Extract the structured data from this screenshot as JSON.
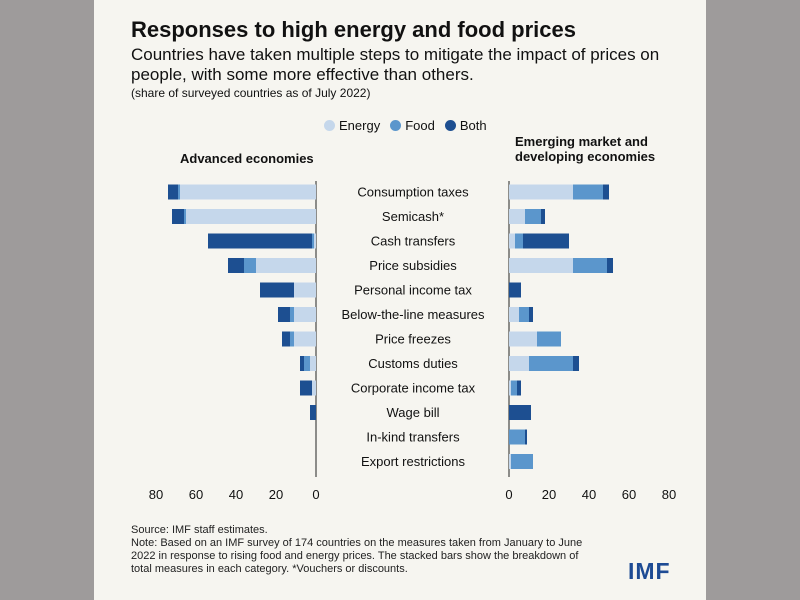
{
  "title": "Responses to high energy and food prices",
  "subtitle": "Countries have taken multiple steps to mitigate the impact of prices on people, with some more effective than others.",
  "note": "(share of surveyed countries as of July 2022)",
  "legend": [
    {
      "name": "Energy",
      "color": "#c5d7eb"
    },
    {
      "name": "Food",
      "color": "#5b96cc"
    },
    {
      "name": "Both",
      "color": "#1d4f91"
    }
  ],
  "panels": {
    "left_title": "Advanced economies",
    "right_title": "Emerging market and developing economies"
  },
  "footer": {
    "source": "Source: IMF staff estimates.",
    "note": "Note: Based on an IMF survey of 174 countries on the measures taken from January to June 2022 in response to rising food and energy prices. The stacked bars show the breakdown of total measures in each category. *Vouchers or discounts."
  },
  "logo": "IMF",
  "chart_data": {
    "type": "bar",
    "orientation": "horizontal",
    "stacked": true,
    "categories": [
      "Consumption taxes",
      "Semicash*",
      "Cash transfers",
      "Price subsidies",
      "Personal income tax",
      "Below-the-line measures",
      "Price freezes",
      "Customs duties",
      "Corporate income tax",
      "Wage bill",
      "In-kind transfers",
      "Export restrictions"
    ],
    "axis_ticks_left": [
      "80",
      "60",
      "40",
      "20",
      "0"
    ],
    "axis_ticks_right": [
      "0",
      "20",
      "40",
      "60",
      "80"
    ],
    "xlim": [
      0,
      80
    ],
    "panels": [
      {
        "name": "Advanced economies",
        "direction": "left",
        "series": [
          {
            "name": "Energy",
            "values": [
              68,
              65,
              1,
              30,
              11,
              11,
              11,
              3,
              2,
              0,
              0,
              0
            ]
          },
          {
            "name": "Food",
            "values": [
              1,
              1,
              1,
              6,
              0,
              2,
              2,
              3,
              0,
              0,
              0,
              0
            ]
          },
          {
            "name": "Both",
            "values": [
              5,
              6,
              52,
              8,
              17,
              6,
              4,
              2,
              6,
              3,
              0,
              0
            ]
          }
        ]
      },
      {
        "name": "Emerging market and developing economies",
        "direction": "right",
        "series": [
          {
            "name": "Energy",
            "values": [
              32,
              8,
              3,
              32,
              0,
              5,
              14,
              10,
              1,
              0,
              0,
              1
            ]
          },
          {
            "name": "Food",
            "values": [
              15,
              8,
              4,
              17,
              0,
              5,
              12,
              22,
              3,
              0,
              8,
              11
            ]
          },
          {
            "name": "Both",
            "values": [
              3,
              2,
              23,
              3,
              6,
              2,
              0,
              3,
              2,
              11,
              1,
              0
            ]
          }
        ]
      }
    ]
  }
}
